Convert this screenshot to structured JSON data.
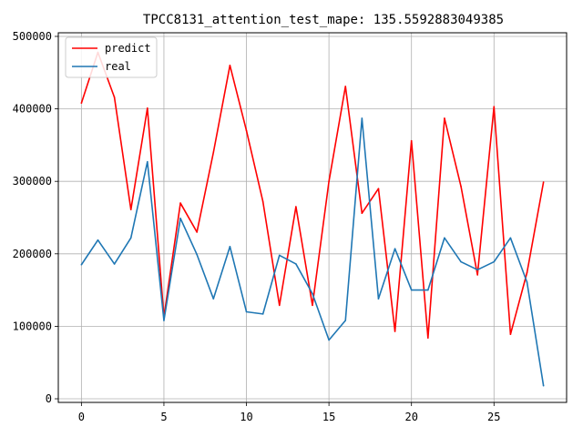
{
  "chart_data": {
    "type": "line",
    "title": "TPCC8131_attention_test_mape: 135.5592883049385",
    "xlabel": "",
    "ylabel": "",
    "x": [
      0,
      1,
      2,
      3,
      4,
      5,
      6,
      7,
      8,
      9,
      10,
      11,
      12,
      13,
      14,
      15,
      16,
      17,
      18,
      19,
      20,
      21,
      22,
      23,
      24,
      25,
      26,
      27,
      28
    ],
    "xticks": [
      0,
      5,
      10,
      15,
      20,
      25
    ],
    "yticks": [
      0,
      100000,
      200000,
      300000,
      400000,
      500000
    ],
    "xlim": [
      -1.4,
      29.4
    ],
    "ylim": [
      -5000,
      505000
    ],
    "grid": true,
    "legend_position": "top-left",
    "series": [
      {
        "name": "predict",
        "color": "#ff0000",
        "values": [
          408000,
          478000,
          416000,
          261000,
          401000,
          113000,
          270000,
          230000,
          340000,
          460000,
          370000,
          272000,
          129000,
          265000,
          129000,
          300000,
          431000,
          256000,
          290000,
          93000,
          356000,
          84000,
          387000,
          293000,
          171000,
          403000,
          89000,
          174000,
          299000
        ]
      },
      {
        "name": "real",
        "color": "#1f77b4",
        "values": [
          185000,
          219000,
          186000,
          222000,
          327000,
          108000,
          249000,
          199000,
          138000,
          210000,
          120000,
          117000,
          198000,
          186000,
          145000,
          81000,
          108000,
          387000,
          138000,
          207000,
          150000,
          150000,
          222000,
          189000,
          178000,
          189000,
          222000,
          161000,
          18000
        ]
      }
    ]
  }
}
